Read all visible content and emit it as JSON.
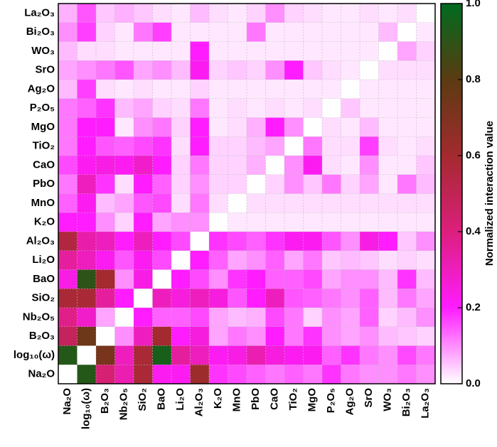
{
  "chart_data": {
    "type": "heatmap",
    "x_categories": [
      "Na₂O",
      "log₁₀(ω)",
      "B₂O₃",
      "Nb₂O₅",
      "SiO₂",
      "BaO",
      "Li₂O",
      "Al₂O₃",
      "K₂O",
      "MnO",
      "PbO",
      "CaO",
      "TiO₂",
      "MgO",
      "P₂O₅",
      "Ag₂O",
      "SrO",
      "WO₃",
      "Bi₂O₃",
      "La₂O₃"
    ],
    "y_categories": [
      "La₂O₃",
      "Bi₂O₃",
      "WO₃",
      "SrO",
      "Ag₂O",
      "P₂O₅",
      "MgO",
      "TiO₂",
      "CaO",
      "PbO",
      "MnO",
      "K₂O",
      "Al₂O₃",
      "Li₂O",
      "BaO",
      "SiO₂",
      "Nb₂O₅",
      "B₂O₃",
      "log₁₀(ω)",
      "Na₂O"
    ],
    "values": [
      [
        0.07,
        0.15,
        0.05,
        0.07,
        0.05,
        0.03,
        0.02,
        0.06,
        0.03,
        0.02,
        0.04,
        0.1,
        0.04,
        0.03,
        0.02,
        0.02,
        0.03,
        0.02,
        0.03,
        0
      ],
      [
        0.1,
        0.17,
        0.04,
        0.02,
        0.12,
        0.17,
        0.02,
        0.02,
        0.02,
        0.02,
        0.12,
        0.02,
        0.02,
        0.02,
        0.02,
        0.02,
        0.02,
        0.06,
        0,
        0.02
      ],
      [
        0.06,
        0.03,
        0.03,
        0.02,
        0.02,
        0.02,
        0.02,
        0.2,
        0.02,
        0.02,
        0.02,
        0.02,
        0.02,
        0.02,
        0.02,
        0.02,
        0.02,
        0,
        0.08,
        0.04
      ],
      [
        0.08,
        0.1,
        0.12,
        0.15,
        0.08,
        0.1,
        0.06,
        0.22,
        0.04,
        0.05,
        0.04,
        0.1,
        0.2,
        0.05,
        0.03,
        0.02,
        0,
        0.03,
        0.03,
        0.03
      ],
      [
        0.06,
        0.17,
        0.03,
        0.02,
        0.03,
        0.02,
        0.02,
        0.04,
        0.02,
        0.02,
        0.02,
        0.02,
        0.02,
        0.02,
        0.02,
        0,
        0.02,
        0.02,
        0.02,
        0.02
      ],
      [
        0.12,
        0.14,
        0.18,
        0.06,
        0.08,
        0.04,
        0.03,
        0.12,
        0.02,
        0.03,
        0.02,
        0.03,
        0.02,
        0.03,
        0,
        0.05,
        0.02,
        0.02,
        0.02,
        0.02
      ],
      [
        0.12,
        0.2,
        0.2,
        0.02,
        0.1,
        0.12,
        0.04,
        0.2,
        0.02,
        0.03,
        0.07,
        0.2,
        0.1,
        0,
        0.03,
        0.02,
        0.06,
        0.02,
        0.02,
        0.02
      ],
      [
        0.12,
        0.2,
        0.15,
        0.14,
        0.16,
        0.18,
        0.03,
        0.2,
        0.04,
        0.04,
        0.06,
        0.08,
        0,
        0.12,
        0.03,
        0.03,
        0.17,
        0.03,
        0.02,
        0.03
      ],
      [
        0.16,
        0.22,
        0.24,
        0.22,
        0.28,
        0.2,
        0.04,
        0.12,
        0.04,
        0.04,
        0.07,
        0,
        0.1,
        0.22,
        0.03,
        0.02,
        0.1,
        0.02,
        0.02,
        0.05
      ],
      [
        0.12,
        0.3,
        0.18,
        0.03,
        0.2,
        0.14,
        0.04,
        0.1,
        0.04,
        0.04,
        0,
        0.04,
        0.1,
        0.05,
        0.12,
        0.04,
        0.08,
        0.02,
        0.12,
        0.06
      ],
      [
        0.14,
        0.22,
        0.06,
        0.08,
        0.15,
        0.16,
        0.03,
        0.12,
        0.03,
        0,
        0.03,
        0.03,
        0.03,
        0.03,
        0.03,
        0.03,
        0.03,
        0.03,
        0.03,
        0.03
      ],
      [
        0.2,
        0.2,
        0.1,
        0.04,
        0.2,
        0.08,
        0.1,
        0.1,
        0,
        0.02,
        0.02,
        0.02,
        0.02,
        0.02,
        0.02,
        0.02,
        0.02,
        0.02,
        0.02,
        0.02
      ],
      [
        0.55,
        0.33,
        0.3,
        0.2,
        0.3,
        0.2,
        0.16,
        0,
        0.18,
        0.16,
        0.14,
        0.18,
        0.22,
        0.22,
        0.15,
        0.1,
        0.24,
        0.2,
        0.05,
        0.1
      ],
      [
        0.35,
        0.3,
        0.22,
        0.15,
        0.22,
        0.16,
        0,
        0.2,
        0.14,
        0.08,
        0.1,
        0.14,
        0.08,
        0.12,
        0.05,
        0.06,
        0.05,
        0.03,
        0.04,
        0.03
      ],
      [
        0.24,
        0.9,
        0.6,
        0.1,
        0.24,
        0,
        0.2,
        0.16,
        0.1,
        0.18,
        0.2,
        0.14,
        0.14,
        0.16,
        0.08,
        0.1,
        0.1,
        0.06,
        0.18,
        0.06
      ],
      [
        0.58,
        0.58,
        0.35,
        0.2,
        0,
        0.3,
        0.25,
        0.3,
        0.25,
        0.15,
        0.2,
        0.3,
        0.15,
        0.14,
        0.12,
        0.1,
        0.14,
        0.06,
        0.12,
        0.08
      ],
      [
        0.38,
        0.28,
        0.08,
        0,
        0.2,
        0.14,
        0.14,
        0.16,
        0.08,
        0.06,
        0.07,
        0.16,
        0.12,
        0.04,
        0.1,
        0.08,
        0.14,
        0.04,
        0.06,
        0.1
      ],
      [
        0.48,
        0.75,
        0,
        0.1,
        0.3,
        0.6,
        0.2,
        0.25,
        0.08,
        0.12,
        0.1,
        0.2,
        0.12,
        0.18,
        0.1,
        0.08,
        0.1,
        0.06,
        0.05,
        0.04
      ],
      [
        0.92,
        0,
        0.72,
        0.3,
        0.58,
        0.95,
        0.35,
        0.3,
        0.22,
        0.24,
        0.32,
        0.25,
        0.22,
        0.22,
        0.14,
        0.18,
        0.12,
        0.1,
        0.16,
        0.12
      ],
      [
        0,
        0.92,
        0.42,
        0.32,
        0.58,
        0.22,
        0.22,
        0.62,
        0.18,
        0.16,
        0.14,
        0.12,
        0.14,
        0.12,
        0.18,
        0.12,
        0.1,
        0.1,
        0.12,
        0.1
      ]
    ],
    "colors": [
      "#ffffff",
      "#ff1cff",
      "#dc1f7c",
      "#a32a2e",
      "#5b3b12",
      "#006b1e"
    ],
    "zlim": [
      0,
      1
    ],
    "zticks": [
      {
        "value": 0,
        "label": "0.0"
      },
      {
        "value": 0.2,
        "label": "0.2"
      },
      {
        "value": 0.4,
        "label": "0.4"
      },
      {
        "value": 0.6,
        "label": "0.6"
      },
      {
        "value": 0.8,
        "label": "0.8"
      },
      {
        "value": 1,
        "label": "1.0"
      }
    ],
    "colorbar_label": "Normalized interaction value",
    "grid": true
  }
}
